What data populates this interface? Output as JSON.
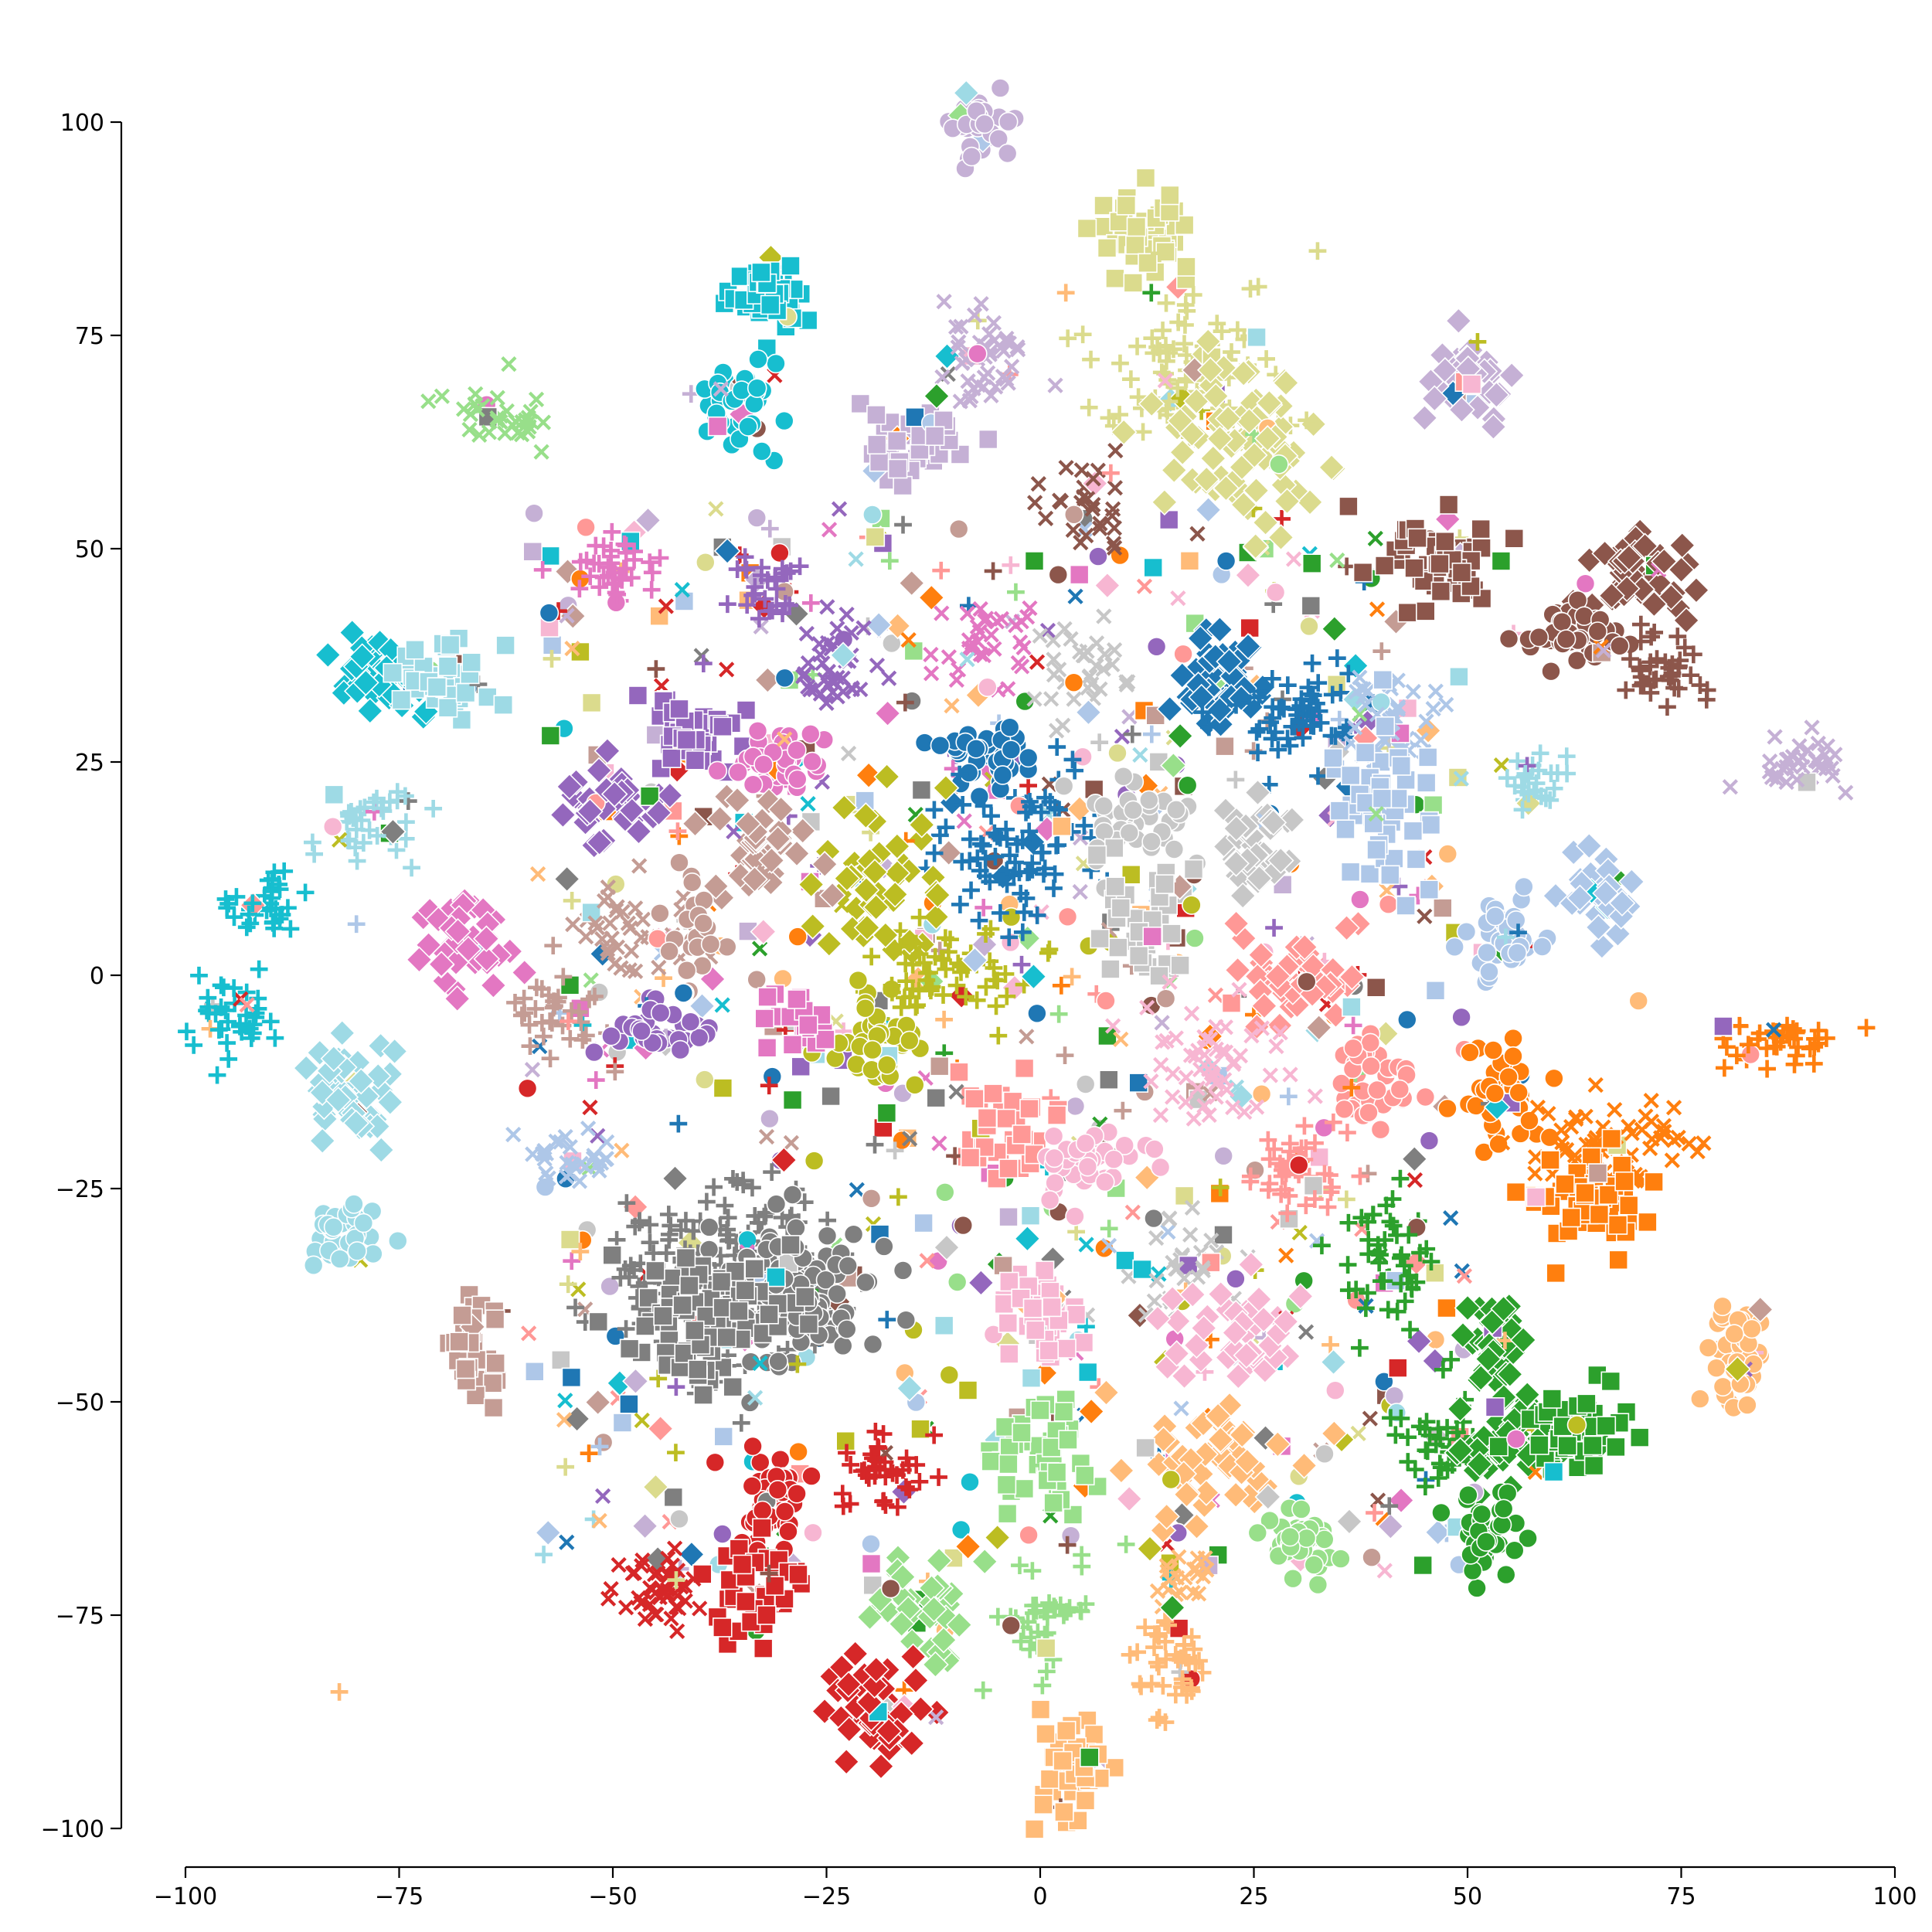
{
  "chart_data": {
    "type": "scatter",
    "title": "",
    "xlabel": "",
    "ylabel": "",
    "xlim": [
      -100,
      100
    ],
    "ylim": [
      -100,
      100
    ],
    "xticks": [
      -100,
      -75,
      -50,
      -25,
      0,
      25,
      50,
      75,
      100
    ],
    "yticks": [
      -100,
      -75,
      -50,
      -25,
      0,
      25,
      50,
      75,
      100
    ],
    "xtick_labels": [
      "−100",
      "−75",
      "−50",
      "−25",
      "0",
      "25",
      "50",
      "75",
      "100"
    ],
    "ytick_labels": [
      "−100",
      "−75",
      "−50",
      "−25",
      "0",
      "25",
      "50",
      "75",
      "100"
    ],
    "grid": false,
    "legend": false,
    "palette": [
      "#1f77b4",
      "#aec7e8",
      "#ff7f0e",
      "#ffbb78",
      "#2ca02c",
      "#98df8a",
      "#d62728",
      "#ff9896",
      "#9467bd",
      "#c5b0d5",
      "#8c564b",
      "#c49c94",
      "#e377c2",
      "#f7b6d2",
      "#7f7f7f",
      "#c7c7c7",
      "#bcbd22",
      "#dbdb8d",
      "#17becf",
      "#9edae5"
    ],
    "markers": [
      "o",
      "s",
      "D",
      "P",
      "X"
    ],
    "clusters": [
      {
        "cx": -7,
        "cy": 99,
        "sx": 2,
        "sy": 2,
        "n": 40,
        "color": "#c5b0d5",
        "marker": "o"
      },
      {
        "cx": 12,
        "cy": 87,
        "sx": 3,
        "sy": 3,
        "n": 45,
        "color": "#dbdb8d",
        "marker": "s"
      },
      {
        "cx": -32,
        "cy": 80,
        "sx": 2,
        "sy": 2,
        "n": 45,
        "color": "#17becf",
        "marker": "s"
      },
      {
        "cx": -35,
        "cy": 67,
        "sx": 2.5,
        "sy": 2.5,
        "n": 45,
        "color": "#17becf",
        "marker": "o"
      },
      {
        "cx": -63,
        "cy": 66,
        "sx": 3,
        "sy": 2,
        "n": 35,
        "color": "#98df8a",
        "marker": "X"
      },
      {
        "cx": -7,
        "cy": 72,
        "sx": 3,
        "sy": 3,
        "n": 50,
        "color": "#c5b0d5",
        "marker": "X"
      },
      {
        "cx": -15,
        "cy": 63,
        "sx": 3,
        "sy": 3,
        "n": 40,
        "color": "#c5b0d5",
        "marker": "s"
      },
      {
        "cx": 18,
        "cy": 70,
        "sx": 5,
        "sy": 5,
        "n": 90,
        "color": "#dbdb8d",
        "marker": "P"
      },
      {
        "cx": 24,
        "cy": 62,
        "sx": 5,
        "sy": 5,
        "n": 90,
        "color": "#dbdb8d",
        "marker": "D"
      },
      {
        "cx": 5,
        "cy": 55,
        "sx": 3,
        "sy": 3,
        "n": 30,
        "color": "#8c564b",
        "marker": "X"
      },
      {
        "cx": 50,
        "cy": 70,
        "sx": 2.5,
        "sy": 2.5,
        "n": 40,
        "color": "#c5b0d5",
        "marker": "D"
      },
      {
        "cx": -50,
        "cy": 47,
        "sx": 3,
        "sy": 2,
        "n": 40,
        "color": "#e377c2",
        "marker": "P"
      },
      {
        "cx": -32,
        "cy": 45,
        "sx": 2,
        "sy": 2,
        "n": 30,
        "color": "#9467bd",
        "marker": "P"
      },
      {
        "cx": 47,
        "cy": 48,
        "sx": 3,
        "sy": 3,
        "n": 50,
        "color": "#8c564b",
        "marker": "s"
      },
      {
        "cx": 70,
        "cy": 47,
        "sx": 3,
        "sy": 3,
        "n": 50,
        "color": "#8c564b",
        "marker": "D"
      },
      {
        "cx": 62,
        "cy": 40,
        "sx": 3,
        "sy": 2,
        "n": 45,
        "color": "#8c564b",
        "marker": "o"
      },
      {
        "cx": 73,
        "cy": 36,
        "sx": 2.5,
        "sy": 2.5,
        "n": 40,
        "color": "#8c564b",
        "marker": "P"
      },
      {
        "cx": -78,
        "cy": 35,
        "sx": 3,
        "sy": 2,
        "n": 50,
        "color": "#17becf",
        "marker": "D"
      },
      {
        "cx": -70,
        "cy": 35,
        "sx": 3,
        "sy": 2,
        "n": 45,
        "color": "#9edae5",
        "marker": "s"
      },
      {
        "cx": -41,
        "cy": 29,
        "sx": 2.5,
        "sy": 2.5,
        "n": 45,
        "color": "#9467bd",
        "marker": "s"
      },
      {
        "cx": -24,
        "cy": 36,
        "sx": 3,
        "sy": 3,
        "n": 40,
        "color": "#9467bd",
        "marker": "X"
      },
      {
        "cx": -7,
        "cy": 38,
        "sx": 3,
        "sy": 3,
        "n": 35,
        "color": "#e377c2",
        "marker": "X"
      },
      {
        "cx": 5,
        "cy": 36,
        "sx": 3,
        "sy": 3,
        "n": 35,
        "color": "#c7c7c7",
        "marker": "X"
      },
      {
        "cx": 20,
        "cy": 35,
        "sx": 3,
        "sy": 3,
        "n": 50,
        "color": "#1f77b4",
        "marker": "D"
      },
      {
        "cx": 30,
        "cy": 30,
        "sx": 4,
        "sy": 3,
        "n": 60,
        "color": "#1f77b4",
        "marker": "P"
      },
      {
        "cx": 40,
        "cy": 30,
        "sx": 3,
        "sy": 3,
        "n": 50,
        "color": "#aec7e8",
        "marker": "X"
      },
      {
        "cx": 40,
        "cy": 20,
        "sx": 3,
        "sy": 5,
        "n": 50,
        "color": "#aec7e8",
        "marker": "s"
      },
      {
        "cx": 90,
        "cy": 25,
        "sx": 3,
        "sy": 2,
        "n": 35,
        "color": "#c5b0d5",
        "marker": "X"
      },
      {
        "cx": 58,
        "cy": 22,
        "sx": 2,
        "sy": 2,
        "n": 30,
        "color": "#9edae5",
        "marker": "P"
      },
      {
        "cx": -7,
        "cy": 26,
        "sx": 3,
        "sy": 2,
        "n": 45,
        "color": "#1f77b4",
        "marker": "o"
      },
      {
        "cx": -30,
        "cy": 25,
        "sx": 3,
        "sy": 2,
        "n": 45,
        "color": "#e377c2",
        "marker": "o"
      },
      {
        "cx": -50,
        "cy": 20,
        "sx": 3,
        "sy": 2,
        "n": 40,
        "color": "#9467bd",
        "marker": "D"
      },
      {
        "cx": -79,
        "cy": 17,
        "sx": 3,
        "sy": 2.5,
        "n": 40,
        "color": "#9edae5",
        "marker": "P"
      },
      {
        "cx": -3,
        "cy": 15,
        "sx": 5,
        "sy": 4,
        "n": 80,
        "color": "#1f77b4",
        "marker": "P"
      },
      {
        "cx": 12,
        "cy": 18,
        "sx": 3,
        "sy": 3,
        "n": 40,
        "color": "#c7c7c7",
        "marker": "o"
      },
      {
        "cx": 25,
        "cy": 15,
        "sx": 3,
        "sy": 3,
        "n": 40,
        "color": "#c7c7c7",
        "marker": "D"
      },
      {
        "cx": -18,
        "cy": 12,
        "sx": 4,
        "sy": 4,
        "n": 50,
        "color": "#bcbd22",
        "marker": "D"
      },
      {
        "cx": -32,
        "cy": 15,
        "sx": 3,
        "sy": 3,
        "n": 40,
        "color": "#c49c94",
        "marker": "D"
      },
      {
        "cx": 66,
        "cy": 10,
        "sx": 2,
        "sy": 3,
        "n": 35,
        "color": "#aec7e8",
        "marker": "D"
      },
      {
        "cx": 54,
        "cy": 4,
        "sx": 2.5,
        "sy": 2.5,
        "n": 40,
        "color": "#aec7e8",
        "marker": "o"
      },
      {
        "cx": -91,
        "cy": 8,
        "sx": 2,
        "sy": 2,
        "n": 35,
        "color": "#17becf",
        "marker": "P"
      },
      {
        "cx": -67,
        "cy": 3,
        "sx": 2.5,
        "sy": 3,
        "n": 40,
        "color": "#e377c2",
        "marker": "D"
      },
      {
        "cx": -48,
        "cy": 5,
        "sx": 4,
        "sy": 3,
        "n": 40,
        "color": "#c49c94",
        "marker": "X"
      },
      {
        "cx": -40,
        "cy": 5,
        "sx": 2,
        "sy": 3,
        "n": 25,
        "color": "#c49c94",
        "marker": "o"
      },
      {
        "cx": 13,
        "cy": 5,
        "sx": 3,
        "sy": 5,
        "n": 40,
        "color": "#c7c7c7",
        "marker": "s"
      },
      {
        "cx": -10,
        "cy": 0,
        "sx": 5,
        "sy": 3,
        "n": 60,
        "color": "#bcbd22",
        "marker": "P"
      },
      {
        "cx": 30,
        "cy": 0,
        "sx": 4,
        "sy": 3,
        "n": 50,
        "color": "#ff9896",
        "marker": "D"
      },
      {
        "cx": -95,
        "cy": -5,
        "sx": 2.5,
        "sy": 3,
        "n": 40,
        "color": "#17becf",
        "marker": "P"
      },
      {
        "cx": -57,
        "cy": -5,
        "sx": 3,
        "sy": 3,
        "n": 35,
        "color": "#c49c94",
        "marker": "P"
      },
      {
        "cx": -45,
        "cy": -6,
        "sx": 3,
        "sy": 2,
        "n": 35,
        "color": "#9467bd",
        "marker": "o"
      },
      {
        "cx": -19,
        "cy": -8,
        "sx": 2.5,
        "sy": 2.5,
        "n": 40,
        "color": "#bcbd22",
        "marker": "o"
      },
      {
        "cx": -28,
        "cy": -5,
        "sx": 2,
        "sy": 2,
        "n": 20,
        "color": "#e377c2",
        "marker": "s"
      },
      {
        "cx": 20,
        "cy": -10,
        "sx": 5,
        "sy": 4,
        "n": 60,
        "color": "#f7b6d2",
        "marker": "X"
      },
      {
        "cx": 38,
        "cy": -12,
        "sx": 3,
        "sy": 3,
        "n": 45,
        "color": "#ff9896",
        "marker": "o"
      },
      {
        "cx": 86,
        "cy": -8,
        "sx": 4,
        "sy": 1.5,
        "n": 40,
        "color": "#ff7f0e",
        "marker": "P"
      },
      {
        "cx": -80,
        "cy": -14,
        "sx": 3,
        "sy": 3,
        "n": 50,
        "color": "#9edae5",
        "marker": "D"
      },
      {
        "cx": -5,
        "cy": -17,
        "sx": 3,
        "sy": 3,
        "n": 40,
        "color": "#ff9896",
        "marker": "s"
      },
      {
        "cx": 5,
        "cy": -22,
        "sx": 3,
        "sy": 2,
        "n": 40,
        "color": "#f7b6d2",
        "marker": "o"
      },
      {
        "cx": 54,
        "cy": -14,
        "sx": 2.5,
        "sy": 3,
        "n": 45,
        "color": "#ff7f0e",
        "marker": "o"
      },
      {
        "cx": 67,
        "cy": -20,
        "sx": 5,
        "sy": 3,
        "n": 70,
        "color": "#ff7f0e",
        "marker": "X"
      },
      {
        "cx": 65,
        "cy": -26,
        "sx": 4,
        "sy": 3,
        "n": 50,
        "color": "#ff7f0e",
        "marker": "s"
      },
      {
        "cx": 30,
        "cy": -23,
        "sx": 3,
        "sy": 3,
        "n": 40,
        "color": "#ff9896",
        "marker": "P"
      },
      {
        "cx": -55,
        "cy": -22,
        "sx": 3,
        "sy": 2,
        "n": 30,
        "color": "#aec7e8",
        "marker": "X"
      },
      {
        "cx": -81,
        "cy": -30,
        "sx": 2,
        "sy": 2,
        "n": 35,
        "color": "#9edae5",
        "marker": "o"
      },
      {
        "cx": -36,
        "cy": -35,
        "sx": 7,
        "sy": 5,
        "n": 200,
        "color": "#7f7f7f",
        "marker": "P"
      },
      {
        "cx": -30,
        "cy": -38,
        "sx": 5,
        "sy": 4,
        "n": 120,
        "color": "#7f7f7f",
        "marker": "o"
      },
      {
        "cx": -38,
        "cy": -40,
        "sx": 5,
        "sy": 4,
        "n": 90,
        "color": "#7f7f7f",
        "marker": "s"
      },
      {
        "cx": 41,
        "cy": -33,
        "sx": 3,
        "sy": 4,
        "n": 50,
        "color": "#2ca02c",
        "marker": "P"
      },
      {
        "cx": 17,
        "cy": -33,
        "sx": 3,
        "sy": 3,
        "n": 35,
        "color": "#c7c7c7",
        "marker": "X"
      },
      {
        "cx": -66,
        "cy": -44,
        "sx": 1.5,
        "sy": 3,
        "n": 40,
        "color": "#c49c94",
        "marker": "s"
      },
      {
        "cx": 0,
        "cy": -40,
        "sx": 2.5,
        "sy": 2.5,
        "n": 40,
        "color": "#f7b6d2",
        "marker": "s"
      },
      {
        "cx": 24,
        "cy": -42,
        "sx": 4,
        "sy": 3,
        "n": 45,
        "color": "#f7b6d2",
        "marker": "D"
      },
      {
        "cx": 82,
        "cy": -44,
        "sx": 1.5,
        "sy": 3,
        "n": 50,
        "color": "#ffbb78",
        "marker": "o"
      },
      {
        "cx": 53,
        "cy": -43,
        "sx": 2,
        "sy": 3,
        "n": 35,
        "color": "#2ca02c",
        "marker": "D"
      },
      {
        "cx": 46,
        "cy": -55,
        "sx": 3,
        "sy": 3,
        "n": 40,
        "color": "#2ca02c",
        "marker": "P"
      },
      {
        "cx": 56,
        "cy": -55,
        "sx": 4,
        "sy": 3,
        "n": 50,
        "color": "#2ca02c",
        "marker": "D"
      },
      {
        "cx": 62,
        "cy": -54,
        "sx": 3,
        "sy": 2.5,
        "n": 45,
        "color": "#2ca02c",
        "marker": "s"
      },
      {
        "cx": 52,
        "cy": -65,
        "sx": 2,
        "sy": 2.5,
        "n": 40,
        "color": "#2ca02c",
        "marker": "o"
      },
      {
        "cx": 0,
        "cy": -57,
        "sx": 3,
        "sy": 3,
        "n": 45,
        "color": "#98df8a",
        "marker": "s"
      },
      {
        "cx": 20,
        "cy": -57,
        "sx": 4,
        "sy": 3,
        "n": 60,
        "color": "#ffbb78",
        "marker": "D"
      },
      {
        "cx": -19,
        "cy": -58,
        "sx": 3,
        "sy": 2,
        "n": 40,
        "color": "#d62728",
        "marker": "P"
      },
      {
        "cx": -32,
        "cy": -62,
        "sx": 3,
        "sy": 3,
        "n": 50,
        "color": "#d62728",
        "marker": "o"
      },
      {
        "cx": -33,
        "cy": -72,
        "sx": 3,
        "sy": 3,
        "n": 45,
        "color": "#d62728",
        "marker": "s"
      },
      {
        "cx": -45,
        "cy": -72,
        "sx": 3,
        "sy": 2.5,
        "n": 45,
        "color": "#d62728",
        "marker": "X"
      },
      {
        "cx": 30,
        "cy": -66,
        "sx": 2,
        "sy": 2.5,
        "n": 40,
        "color": "#98df8a",
        "marker": "o"
      },
      {
        "cx": -14,
        "cy": -74,
        "sx": 3,
        "sy": 3,
        "n": 45,
        "color": "#98df8a",
        "marker": "D"
      },
      {
        "cx": 0,
        "cy": -76,
        "sx": 2.5,
        "sy": 3,
        "n": 40,
        "color": "#98df8a",
        "marker": "P"
      },
      {
        "cx": 16,
        "cy": -80,
        "sx": 2.5,
        "sy": 3,
        "n": 45,
        "color": "#ffbb78",
        "marker": "P"
      },
      {
        "cx": 16,
        "cy": -71,
        "sx": 2,
        "sy": 2,
        "n": 25,
        "color": "#ffbb78",
        "marker": "X"
      },
      {
        "cx": -20,
        "cy": -86,
        "sx": 3,
        "sy": 3,
        "n": 50,
        "color": "#d62728",
        "marker": "D"
      },
      {
        "cx": 4,
        "cy": -93,
        "sx": 2,
        "sy": 3,
        "n": 40,
        "color": "#ffbb78",
        "marker": "s"
      }
    ],
    "scatter_noise": {
      "n": 700,
      "x_range": [
        -60,
        50
      ],
      "y_range": [
        -70,
        55
      ]
    },
    "outliers": [
      {
        "x": -82,
        "y": -84,
        "color": "#ffbb78",
        "marker": "P"
      },
      {
        "x": -80,
        "y": 6,
        "color": "#aec7e8",
        "marker": "P"
      },
      {
        "x": 70,
        "y": -3,
        "color": "#ffbb78",
        "marker": "o"
      },
      {
        "x": 58,
        "y": -26,
        "color": "#f7b6d2",
        "marker": "s"
      },
      {
        "x": 13,
        "y": 80,
        "color": "#2ca02c",
        "marker": "P"
      },
      {
        "x": 3,
        "y": 80,
        "color": "#ffbb78",
        "marker": "P"
      }
    ]
  }
}
